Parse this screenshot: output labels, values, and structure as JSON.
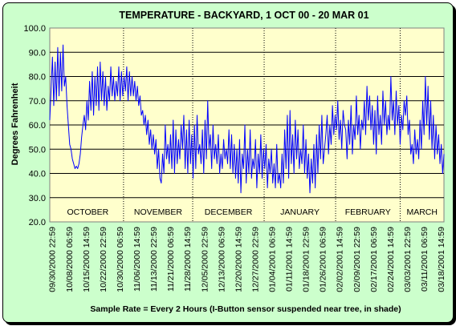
{
  "chart_data": {
    "type": "line",
    "title": "TEMPERATURE - BACKYARD, 1 OCT 00 - 20 MAR 01",
    "xlabel": "Sample Rate = Every 2 Hours (I-Button sensor suspended near tree, in shade)",
    "ylabel": "Degrees Fahrenheit",
    "ylim": [
      20,
      100
    ],
    "y_ticks": [
      "20.0",
      "30.0",
      "40.0",
      "50.0",
      "60.0",
      "70.0",
      "80.0",
      "90.0",
      "100.0"
    ],
    "grid": "horizontal",
    "plot_background": "#ffffcc",
    "panel_background": "#ccffcc",
    "line_color": "#0000ff",
    "x_tick_labels": [
      "09/30/2000 22:59",
      "10/08/2000 06:59",
      "10/15/2000 14:59",
      "10/22/2000 22:59",
      "10/30/2000 06:59",
      "11/06/2000 14:59",
      "11/13/2000 22:59",
      "11/21/2000 06:59",
      "11/28/2000 14:59",
      "12/05/2000 22:59",
      "12/13/2000 06:59",
      "12/20/2000 14:59",
      "12/27/2000 22:59",
      "01/04/2001 06:59",
      "01/11/2001 14:59",
      "01/18/2001 22:59",
      "01/26/2001 06:59",
      "02/02/2001 14:59",
      "02/09/2001 22:59",
      "02/17/2001 06:59",
      "02/24/2001 14:59",
      "03/03/2001 22:59",
      "03/11/2001 06:59",
      "03/18/2001 14:59"
    ],
    "month_labels": [
      "OCTOBER",
      "NOVEMBER",
      "DECEMBER",
      "JANUARY",
      "FEBRUARY",
      "MARCH"
    ],
    "series": [
      {
        "x_start": "2000-09-30",
        "x_end": "2001-03-20",
        "values": [
          62,
          75,
          88,
          68,
          86,
          70,
          92,
          72,
          90,
          74,
          93,
          76,
          80,
          68,
          60,
          52,
          50,
          46,
          44,
          42,
          43,
          42,
          44,
          48,
          55,
          60,
          64,
          58,
          70,
          62,
          78,
          66,
          82,
          64,
          80,
          68,
          84,
          66,
          86,
          70,
          82,
          68,
          80,
          66,
          76,
          70,
          84,
          72,
          80,
          70,
          78,
          72,
          84,
          70,
          82,
          72,
          80,
          74,
          84,
          70,
          82,
          72,
          80,
          72,
          78,
          70,
          76,
          68,
          72,
          64,
          66,
          60,
          64,
          56,
          62,
          52,
          58,
          50,
          56,
          48,
          54,
          42,
          50,
          38,
          36,
          48,
          40,
          60,
          46,
          52,
          44,
          56,
          42,
          62,
          40,
          58,
          44,
          54,
          46,
          60,
          50,
          64,
          42,
          58,
          40,
          62,
          44,
          56,
          38,
          60,
          42,
          64,
          48,
          52,
          44,
          58,
          40,
          62,
          46,
          70,
          50,
          56,
          42,
          60,
          46,
          52,
          44,
          56,
          40,
          48,
          42,
          54,
          46,
          50,
          44,
          58,
          42,
          56,
          40,
          52,
          38,
          50,
          36,
          54,
          32,
          48,
          42,
          60,
          36,
          50,
          40,
          58,
          38,
          46,
          42,
          54,
          34,
          48,
          40,
          56,
          38,
          50,
          42,
          52,
          34,
          46,
          40,
          50,
          36,
          44,
          34,
          52,
          36,
          40,
          34,
          48,
          36,
          58,
          42,
          64,
          38,
          66,
          44,
          56,
          40,
          62,
          46,
          58,
          42,
          50,
          44,
          60,
          40,
          54,
          38,
          48,
          32,
          46,
          36,
          52,
          34,
          56,
          40,
          60,
          46,
          64,
          44,
          50,
          56,
          64,
          48,
          60,
          52,
          68,
          56,
          64,
          58,
          70,
          54,
          62,
          50,
          66,
          60,
          58,
          46,
          62,
          52,
          68,
          48,
          60,
          54,
          72,
          56,
          64,
          50,
          62,
          58,
          70,
          56,
          76,
          62,
          72,
          58,
          68,
          52,
          66,
          48,
          72,
          56,
          64,
          52,
          74,
          60,
          70,
          56,
          64,
          58,
          80,
          62,
          70,
          56,
          74,
          60,
          68,
          52,
          64,
          58,
          70,
          64,
          72,
          56,
          62,
          48,
          52,
          44,
          58,
          48,
          54,
          46,
          62,
          50,
          70,
          56,
          80,
          60,
          76,
          54,
          70,
          50,
          64,
          46,
          60,
          48,
          56,
          44,
          52,
          40,
          48
        ]
      }
    ]
  }
}
